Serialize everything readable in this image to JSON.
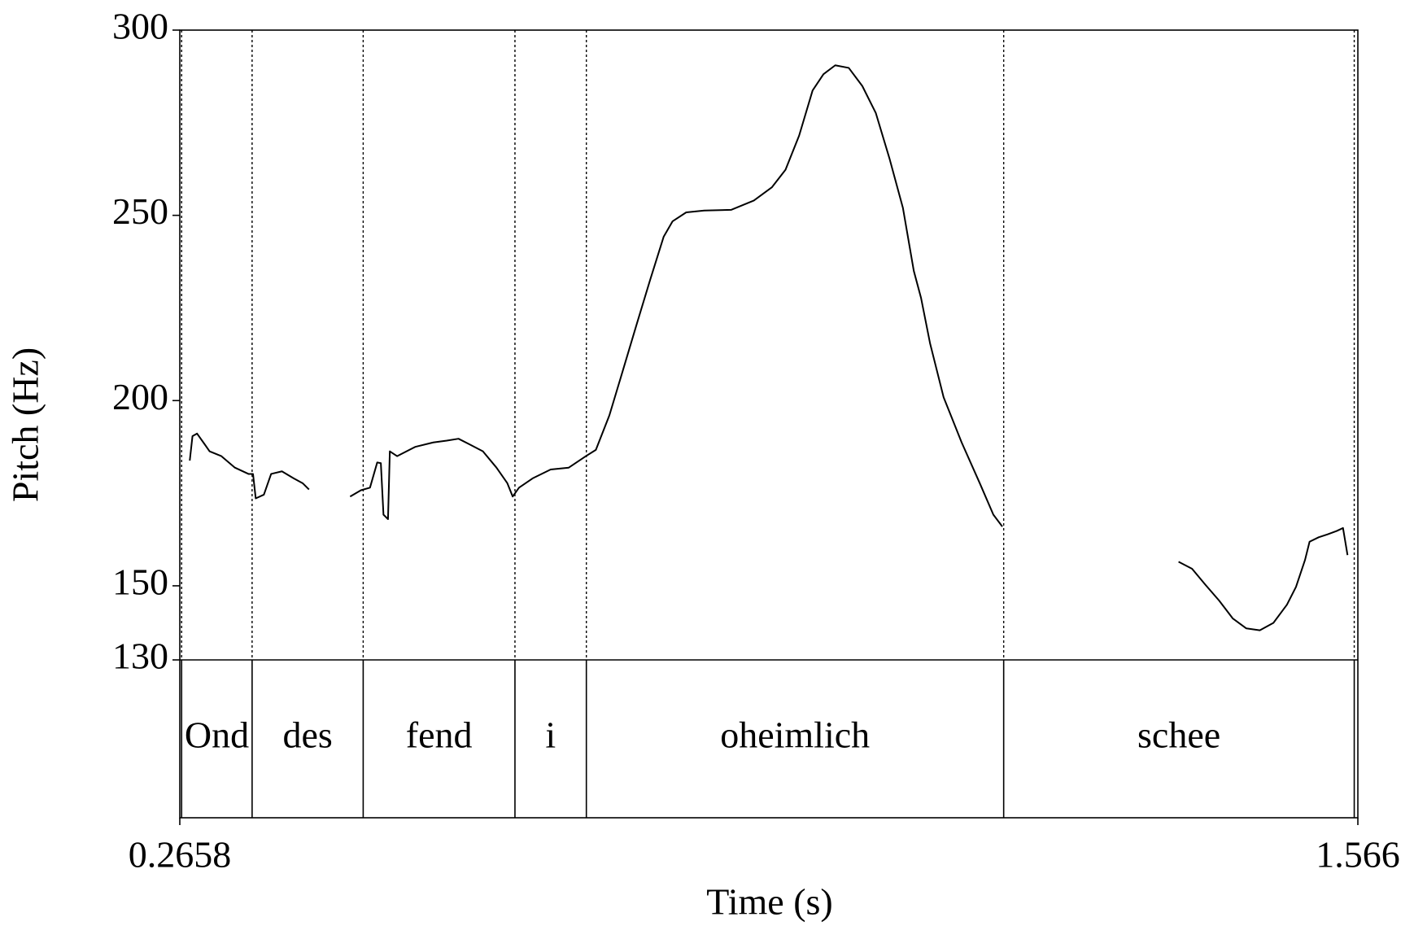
{
  "chart_data": {
    "type": "line",
    "x_label": "Time (s)",
    "y_label": "Pitch (Hz)",
    "xlim": [
      0.2658,
      1.566
    ],
    "xticks": [
      0.2658,
      1.566
    ],
    "ylim": [
      130,
      300
    ],
    "yticks": [
      130,
      150,
      200,
      250,
      300
    ],
    "boundaries": [
      0.2678,
      0.3456,
      0.4682,
      0.6357,
      0.7145,
      1.1751,
      1.562
    ],
    "words": [
      "Ond",
      "des",
      "fend",
      "i",
      "oheimlich",
      "schee"
    ],
    "series": [
      {
        "color": "#000000",
        "x": [
          0.2768,
          0.2798,
          0.2848,
          0.2918,
          0.2987,
          0.3117,
          0.3266,
          0.3416,
          0.3466,
          0.3496,
          0.3586,
          0.3666,
          0.3785,
          0.3915,
          0.4014,
          0.4084,
          null,
          0.4538,
          0.4657,
          0.4757,
          0.4837,
          0.4877,
          0.4906,
          0.4956,
          0.4976,
          0.5056,
          0.5256,
          0.5455,
          0.5605,
          0.5734,
          0.5854,
          0.6003,
          0.6153,
          0.6273,
          0.6332,
          0.6402,
          0.6552,
          0.6751,
          0.6951,
          0.714,
          0.725,
          0.7399,
          0.7549,
          0.7698,
          0.7848,
          0.7998,
          0.8097,
          0.8247,
          0.8446,
          0.8745,
          0.8994,
          0.9194,
          0.9343,
          0.9493,
          0.9642,
          0.9762,
          0.9892,
          1.0041,
          1.0191,
          1.034,
          1.049,
          1.0639,
          1.0759,
          1.0839,
          1.0938,
          1.1088,
          1.1287,
          1.1487,
          1.1637,
          1.1736,
          null,
          1.3681,
          1.383,
          1.398,
          1.4129,
          1.4279,
          1.4429,
          1.4578,
          1.4728,
          1.4877,
          1.4977,
          1.5077,
          1.5127,
          1.5227,
          1.5326,
          1.5426,
          1.5496,
          1.5546
        ],
        "values": [
          183.8,
          190.4,
          191.1,
          188.7,
          186.3,
          185.0,
          181.9,
          180.2,
          180.2,
          173.6,
          174.6,
          180.2,
          180.9,
          179.0,
          177.7,
          176.0,
          null,
          174.1,
          175.8,
          176.5,
          183.3,
          183.1,
          169.2,
          168.0,
          186.3,
          185.0,
          187.5,
          188.7,
          189.2,
          189.7,
          188.2,
          186.3,
          181.9,
          177.7,
          174.1,
          176.5,
          179.0,
          181.4,
          181.9,
          185.0,
          186.7,
          196.0,
          208.2,
          220.4,
          232.5,
          244.2,
          248.4,
          250.8,
          251.3,
          251.5,
          254.0,
          257.6,
          262.3,
          271.5,
          283.7,
          288.1,
          290.5,
          289.8,
          284.9,
          277.6,
          265.4,
          252.0,
          235.0,
          227.7,
          215.5,
          200.9,
          188.7,
          177.7,
          169.2,
          166.0,
          null,
          156.5,
          154.6,
          150.2,
          146.0,
          141.2,
          138.5,
          138.0,
          140.0,
          144.9,
          149.7,
          157.0,
          161.9,
          163.1,
          163.9,
          164.8,
          165.6,
          158.3
        ]
      }
    ]
  }
}
